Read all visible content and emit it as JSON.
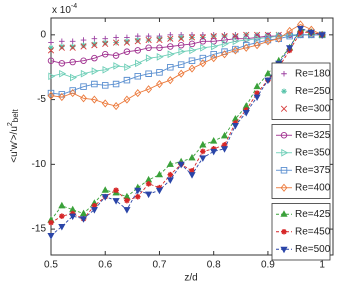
{
  "chart_data": {
    "type": "line",
    "xlabel": "z/d",
    "ylabel": "<u'w'>/u",
    "ylabel_sup": "2",
    "ylabel_sub": "belt",
    "y_scale_label": "x 10",
    "y_scale_exponent": "-4",
    "x": [
      0.5,
      0.52,
      0.54,
      0.56,
      0.58,
      0.6,
      0.62,
      0.64,
      0.66,
      0.68,
      0.7,
      0.72,
      0.74,
      0.76,
      0.78,
      0.8,
      0.82,
      0.84,
      0.86,
      0.88,
      0.9,
      0.92,
      0.94,
      0.96,
      0.98,
      1.0
    ],
    "xlim": [
      0.5,
      1.02
    ],
    "xticks": [
      0.5,
      0.6,
      0.7,
      0.8,
      0.9,
      1
    ],
    "ylim": [
      -17,
      1.3
    ],
    "yticks": [
      -15,
      -10,
      -5,
      0
    ],
    "series": [
      {
        "name": "Re=180",
        "color": "#9b3fa0",
        "marker": "plus",
        "line": "none",
        "values": [
          -0.6,
          -0.5,
          -0.5,
          -0.4,
          -0.3,
          -0.3,
          -0.2,
          -0.2,
          -0.1,
          -0.1,
          -0.1,
          0,
          0,
          0,
          0,
          0,
          0,
          0,
          0,
          0,
          0,
          0,
          0,
          0,
          0,
          0
        ]
      },
      {
        "name": "Re=250",
        "color": "#55c2a8",
        "marker": "star",
        "line": "none",
        "values": [
          -1.0,
          -0.9,
          -0.9,
          -0.8,
          -0.7,
          -0.6,
          -0.6,
          -0.5,
          -0.4,
          -0.4,
          -0.3,
          -0.3,
          -0.2,
          -0.2,
          -0.2,
          -0.1,
          -0.1,
          -0.1,
          0,
          0,
          0,
          0,
          0,
          0,
          0,
          0
        ]
      },
      {
        "name": "Re=300",
        "color": "#d63a3a",
        "marker": "cross",
        "line": "none",
        "values": [
          -1.2,
          -1.0,
          -1.0,
          -0.9,
          -0.8,
          -0.7,
          -0.6,
          -0.6,
          -0.5,
          -0.4,
          -0.4,
          -0.3,
          -0.3,
          -0.2,
          -0.2,
          -0.1,
          -0.1,
          -0.1,
          0,
          0,
          0,
          0,
          0,
          0,
          0,
          0
        ]
      },
      {
        "name": "Re=325",
        "color": "#a0308f",
        "marker": "circle",
        "line": "solid",
        "values": [
          -2.0,
          -2.2,
          -2.1,
          -2.0,
          -1.8,
          -1.5,
          -1.6,
          -1.3,
          -1.2,
          -1.0,
          -1.0,
          -0.9,
          -0.8,
          -0.7,
          -0.5,
          -0.5,
          -0.4,
          -0.3,
          -0.3,
          -0.2,
          -0.1,
          -0.1,
          0,
          0,
          0,
          0
        ]
      },
      {
        "name": "Re=350",
        "color": "#6fcfb8",
        "marker": "triangle-right",
        "line": "solid",
        "values": [
          -3.2,
          -3.0,
          -3.3,
          -3.0,
          -2.8,
          -2.7,
          -2.4,
          -2.5,
          -2.2,
          -1.8,
          -1.7,
          -1.5,
          -1.3,
          -1.2,
          -1.0,
          -0.9,
          -0.7,
          -0.5,
          -0.4,
          -0.3,
          -0.2,
          -0.1,
          0,
          0,
          0,
          0
        ]
      },
      {
        "name": "Re=375",
        "color": "#5a8fd0",
        "marker": "square",
        "line": "solid",
        "values": [
          -4.5,
          -4.6,
          -4.3,
          -4.0,
          -3.8,
          -3.9,
          -3.8,
          -3.5,
          -3.2,
          -3.0,
          -2.9,
          -2.5,
          -2.3,
          -2.0,
          -1.8,
          -1.5,
          -1.3,
          -1.1,
          -0.8,
          -0.6,
          -0.4,
          -0.3,
          -0.1,
          0,
          0,
          0
        ]
      },
      {
        "name": "Re=400",
        "color": "#ec7a3c",
        "marker": "diamond",
        "line": "solid",
        "values": [
          -4.7,
          -4.8,
          -4.5,
          -4.9,
          -5.0,
          -5.3,
          -5.5,
          -5.0,
          -4.5,
          -4.2,
          -3.8,
          -3.5,
          -3.0,
          -2.6,
          -2.2,
          -1.8,
          -1.5,
          -1.2,
          -1.0,
          -0.8,
          -0.5,
          -0.3,
          0.3,
          0.8,
          0.4,
          0
        ]
      },
      {
        "name": "Re=425",
        "color": "#3aa13a",
        "marker": "triangle-up",
        "line": "dashed",
        "values": [
          -14.3,
          -13.2,
          -13.5,
          -13.8,
          -13.0,
          -12.0,
          -12.2,
          -12.5,
          -11.8,
          -11.2,
          -10.8,
          -10.0,
          -9.8,
          -9.5,
          -8.5,
          -8.2,
          -7.8,
          -6.5,
          -5.5,
          -4.0,
          -3.0,
          -2.0,
          -1.0,
          0.4,
          0.2,
          0
        ]
      },
      {
        "name": "Re=450",
        "color": "#d62728",
        "marker": "star",
        "line": "dashed",
        "values": [
          -14.5,
          -14.0,
          -13.8,
          -14.2,
          -13.2,
          -12.5,
          -12.0,
          -12.8,
          -12.5,
          -11.5,
          -11.8,
          -10.8,
          -10.0,
          -10.5,
          -9.0,
          -8.8,
          -8.5,
          -6.8,
          -5.8,
          -4.5,
          -3.5,
          -2.5,
          -1.2,
          0.2,
          0.2,
          0
        ]
      },
      {
        "name": "Re=500",
        "color": "#2a45a8",
        "marker": "triangle-down",
        "line": "dashed",
        "values": [
          -15.5,
          -14.8,
          -14.0,
          -14.2,
          -13.5,
          -12.5,
          -12.8,
          -13.5,
          -12.0,
          -12.3,
          -12.0,
          -11.2,
          -10.0,
          -10.8,
          -9.5,
          -9.0,
          -8.8,
          -7.0,
          -6.0,
          -4.8,
          -3.5,
          -2.2,
          -1.0,
          0.5,
          0.2,
          0
        ]
      }
    ]
  }
}
